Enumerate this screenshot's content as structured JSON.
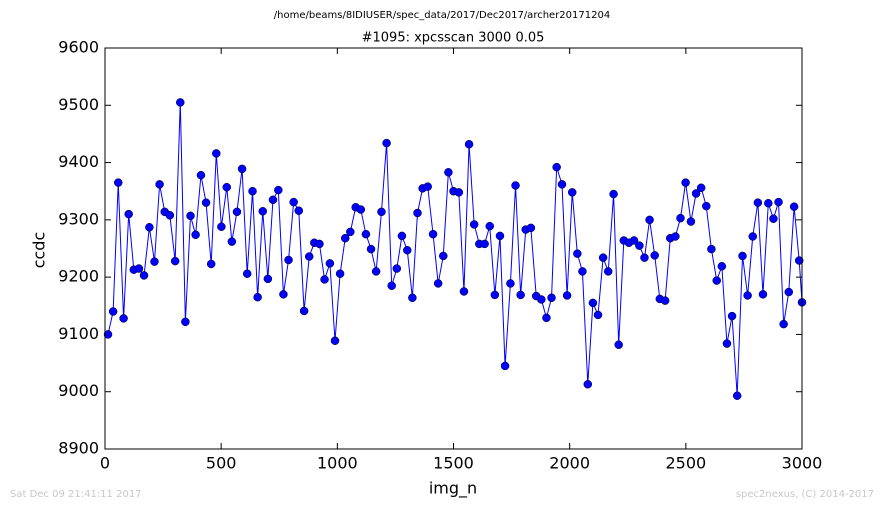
{
  "chart_data": {
    "type": "line",
    "path_title": "/home/beams/8IDIUSER/spec_data/2017/Dec2017/archer20171204",
    "title": "#1095: xpcsscan 3000 0.05",
    "xlabel": "img_n",
    "ylabel": "ccdc",
    "footer_left": "Sat Dec 09 21:41:11 2017",
    "footer_right": "spec2nexus, (C) 2014-2017",
    "xlim": [
      0,
      3000
    ],
    "xticks": [
      0,
      500,
      1000,
      1500,
      2000,
      2500,
      3000
    ],
    "ylim": [
      8900,
      9600
    ],
    "yticks": [
      8900,
      9000,
      9100,
      9200,
      9300,
      9400,
      9500,
      9600
    ],
    "x": [
      13,
      35,
      57,
      80,
      102,
      124,
      146,
      168,
      191,
      213,
      235,
      257,
      279,
      302,
      324,
      346,
      368,
      390,
      413,
      435,
      457,
      479,
      501,
      524,
      546,
      568,
      590,
      612,
      635,
      657,
      679,
      701,
      723,
      746,
      768,
      790,
      812,
      834,
      857,
      879,
      901,
      923,
      945,
      968,
      990,
      1012,
      1034,
      1056,
      1079,
      1101,
      1123,
      1145,
      1167,
      1190,
      1212,
      1234,
      1256,
      1278,
      1301,
      1323,
      1345,
      1367,
      1389,
      1412,
      1434,
      1456,
      1478,
      1500,
      1523,
      1545,
      1567,
      1589,
      1611,
      1634,
      1656,
      1678,
      1700,
      1722,
      1745,
      1767,
      1789,
      1811,
      1833,
      1856,
      1878,
      1900,
      1922,
      1944,
      1967,
      1989,
      2011,
      2033,
      2055,
      2078,
      2100,
      2122,
      2144,
      2166,
      2189,
      2211,
      2233,
      2255,
      2277,
      2300,
      2322,
      2344,
      2366,
      2388,
      2411,
      2433,
      2455,
      2477,
      2499,
      2522,
      2544,
      2566,
      2588,
      2610,
      2633,
      2655,
      2677,
      2699,
      2721,
      2744,
      2766,
      2788,
      2810,
      2832,
      2855,
      2877,
      2899,
      2921,
      2943,
      2966,
      2988,
      3000
    ],
    "series": [
      {
        "name": "ccdc",
        "color": "#0000ff",
        "values": [
          9100,
          9140,
          9365,
          9128,
          9310,
          9213,
          9215,
          9203,
          9287,
          9227,
          9362,
          9314,
          9308,
          9228,
          9505,
          9122,
          9307,
          9274,
          9378,
          9330,
          9223,
          9416,
          9288,
          9357,
          9262,
          9314,
          9389,
          9206,
          9350,
          9165,
          9315,
          9197,
          9335,
          9352,
          9170,
          9230,
          9331,
          9316,
          9141,
          9236,
          9260,
          9258,
          9196,
          9224,
          9089,
          9206,
          9268,
          9279,
          9322,
          9318,
          9275,
          9249,
          9210,
          9314,
          9434,
          9185,
          9215,
          9272,
          9247,
          9164,
          9312,
          9355,
          9358,
          9275,
          9189,
          9237,
          9383,
          9350,
          9348,
          9175,
          9432,
          9292,
          9258,
          9258,
          9289,
          9169,
          9272,
          9045,
          9189,
          9360,
          9169,
          9283,
          9286,
          9167,
          9161,
          9129,
          9164,
          9392,
          9362,
          9168,
          9348,
          9241,
          9210,
          9013,
          9155,
          9134,
          9234,
          9210,
          9345,
          9082,
          9264,
          9260,
          9264,
          9255,
          9234,
          9300,
          9238,
          9162,
          9159,
          9268,
          9271,
          9303,
          9365,
          9297,
          9346,
          9356,
          9324,
          9249,
          9194,
          9219,
          9084,
          9132,
          8993,
          9237,
          9168,
          9271,
          9330,
          9170,
          9329,
          9302,
          9331,
          9118,
          9174,
          9323,
          9229,
          9156
        ]
      }
    ]
  }
}
